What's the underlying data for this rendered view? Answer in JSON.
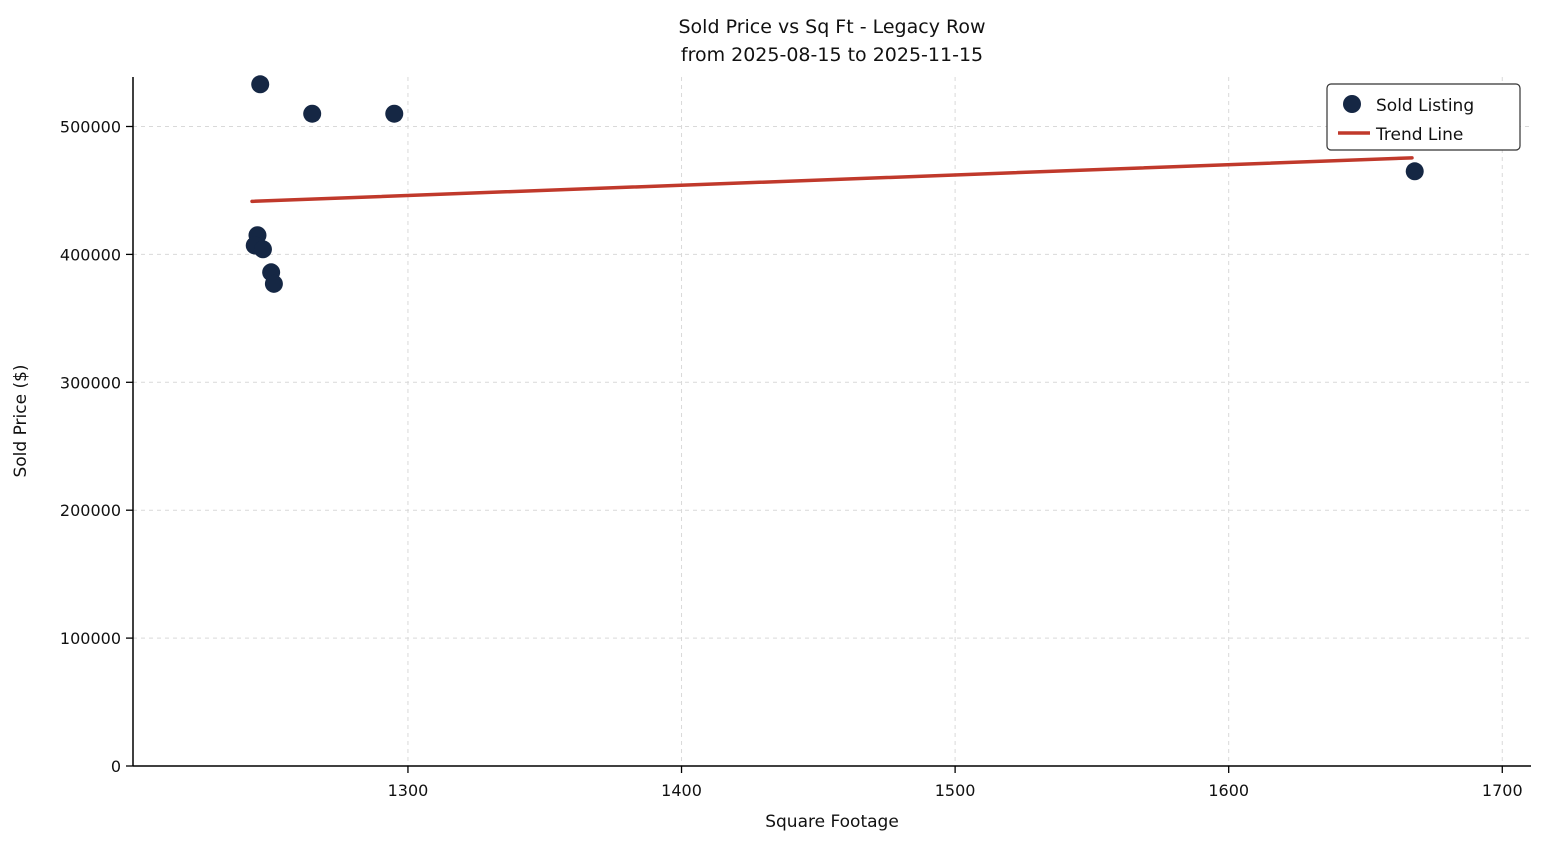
{
  "chart_data": {
    "type": "scatter",
    "title": "Sold Price vs Sq Ft - Legacy Row",
    "subtitle": "from 2025-08-15 to 2025-11-15",
    "xlabel": "Square Footage",
    "ylabel": "Sold Price ($)",
    "xlim": [
      1199.5,
      1710.5
    ],
    "ylim": [
      0,
      538700
    ],
    "x_ticks": [
      1300,
      1400,
      1500,
      1600,
      1700
    ],
    "y_ticks": [
      0,
      100000,
      200000,
      300000,
      400000,
      500000
    ],
    "grid": "dashed",
    "legend": {
      "position": "upper right",
      "entries": [
        {
          "label": "Sold Listing",
          "type": "marker"
        },
        {
          "label": "Trend Line",
          "type": "line"
        }
      ]
    },
    "series": [
      {
        "name": "Sold Listing",
        "type": "scatter",
        "color": "#152744",
        "marker_radius": 9,
        "points": [
          [
            1246,
            533000
          ],
          [
            1265,
            510000
          ],
          [
            1295,
            510000
          ],
          [
            1245,
            415000
          ],
          [
            1244,
            407000
          ],
          [
            1247,
            404000
          ],
          [
            1250,
            386000
          ],
          [
            1251,
            377000
          ],
          [
            1668,
            465000
          ]
        ]
      },
      {
        "name": "Trend Line",
        "type": "line",
        "color": "#c0392b",
        "stroke_width": 3.5,
        "points": [
          [
            1243,
            441500
          ],
          [
            1667,
            475500
          ]
        ]
      }
    ]
  }
}
